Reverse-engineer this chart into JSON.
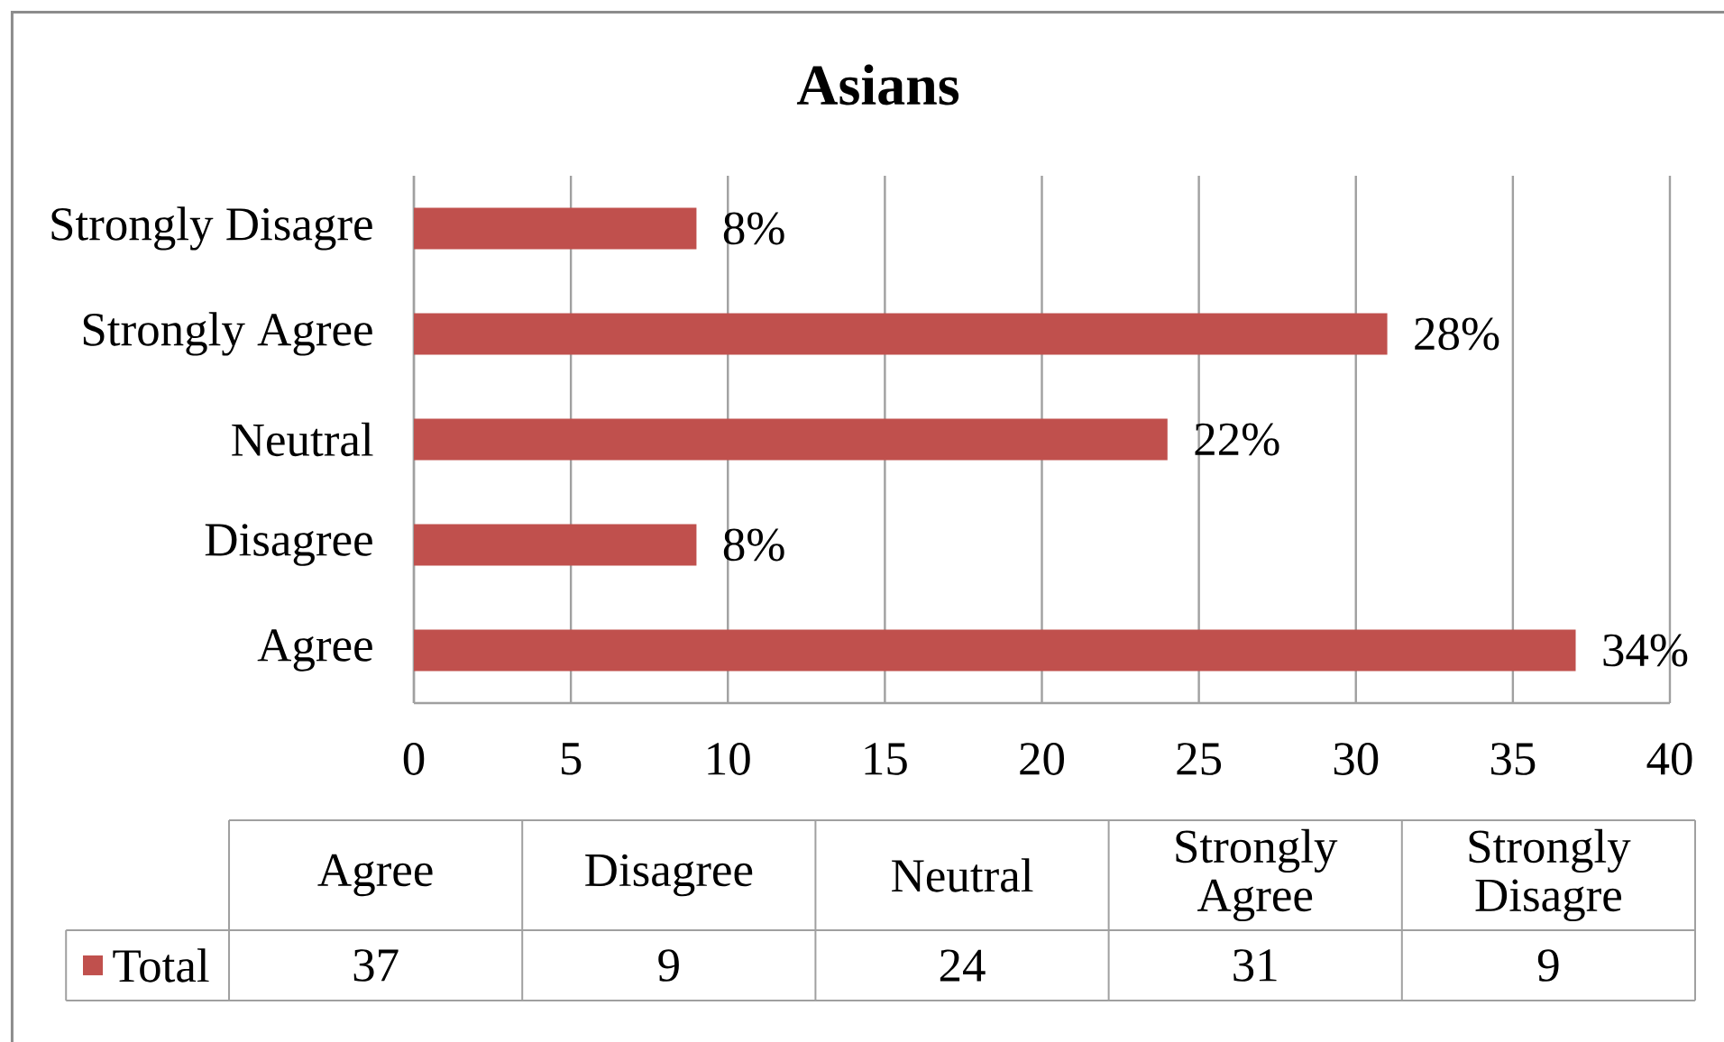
{
  "chart_data": [
    {
      "type": "bar",
      "orientation": "horizontal",
      "title": "Asians",
      "categories": [
        "Strongly Disagre",
        "Strongly Agree",
        "Neutral",
        "Disagree",
        "Agree"
      ],
      "series": [
        {
          "color": "#c0504d",
          "values": [
            9,
            31,
            24,
            9,
            37
          ]
        }
      ],
      "xlim": [
        0,
        40
      ],
      "xticks": [
        0,
        5,
        10,
        15,
        20,
        25,
        30,
        35,
        40
      ],
      "annotations": [
        {
          "text": "8%",
          "x": 9,
          "y": "Strongly Disagre"
        },
        {
          "text": "28%",
          "x": 31,
          "y": "Strongly Agree"
        },
        {
          "text": "22%",
          "x": 24,
          "y": "Neutral"
        },
        {
          "text": "8%",
          "x": 9,
          "y": "Disagree"
        },
        {
          "text": "34%",
          "x": 37,
          "y": "Agree"
        }
      ],
      "grid": "x"
    },
    {
      "type": "other",
      "categories": [
        "Agree",
        "Disagree",
        "Neutral",
        "Strongly Agree",
        "Strongly Disagre"
      ],
      "series": [
        {
          "name": "Total",
          "color": "#c0504d",
          "values": [
            37,
            9,
            24,
            31,
            9
          ]
        }
      ],
      "data_labels": true,
      "legend": "left"
    }
  ]
}
